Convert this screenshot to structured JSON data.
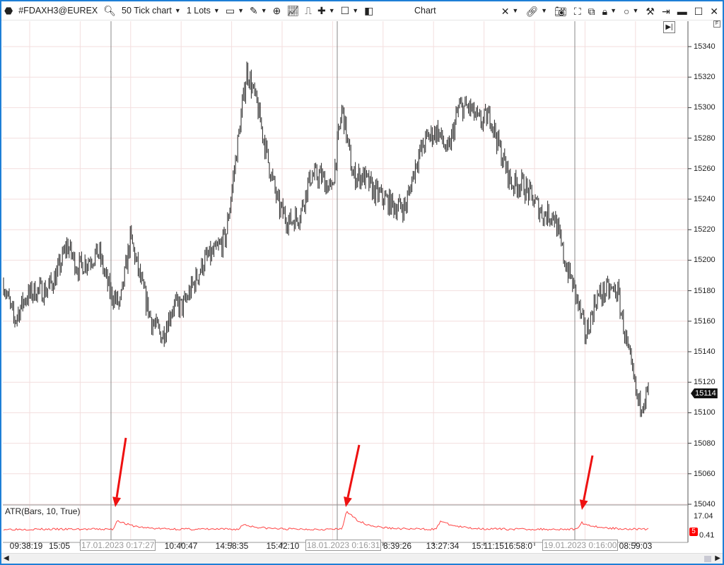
{
  "toolbar": {
    "symbol": "#FDAXH3@EUREX",
    "chart_type": "50 Tick chart",
    "lots": "1 Lots",
    "title": "Chart"
  },
  "axis": {
    "price_labels": [
      "15340",
      "15320",
      "15300",
      "15280",
      "15260",
      "15240",
      "15220",
      "15200",
      "15180",
      "15160",
      "15140",
      "15120",
      "15100",
      "15080",
      "15060",
      "15040"
    ],
    "last_price": "15114",
    "atr_max": "17.04",
    "atr_min": "0.41",
    "atr_last": "5"
  },
  "indicator": {
    "label": "ATR(Bars, 10, True)",
    "color": "#ff4444"
  },
  "time_axis": {
    "labels": [
      "09:38:19",
      "15:05",
      "10:40:47",
      "14:58:35",
      "15:42:10",
      "8:39:26",
      "13:27:34",
      "15:11:15",
      "16:58:0",
      "08:59:03"
    ],
    "sessions": [
      "17.01.2023 0:17:27",
      "18.01.2023 0:16:31",
      "19.01.2023 0:16:00"
    ]
  },
  "chart_data": {
    "type": "line",
    "subtype": "tick bars (OHLC)",
    "ylim": [
      15040,
      15340
    ],
    "price_path": [
      15185,
      15160,
      15175,
      15180,
      15180,
      15190,
      15210,
      15195,
      15200,
      15205,
      15180,
      15170,
      15215,
      15185,
      15160,
      15150,
      15170,
      15170,
      15185,
      15200,
      15205,
      15215,
      15270,
      15325,
      15300,
      15265,
      15235,
      15225,
      15230,
      15255,
      15255,
      15245,
      15300,
      15255,
      15255,
      15245,
      15240,
      15235,
      15235,
      15265,
      15280,
      15285,
      15270,
      15300,
      15300,
      15290,
      15295,
      15270,
      15250,
      15250,
      15240,
      15230,
      15230,
      15200,
      15180,
      15150,
      15175,
      15180,
      15180,
      15140,
      15105,
      15114
    ],
    "atr": {
      "ylim": [
        0.41,
        17.04
      ],
      "baseline": 4,
      "spikes": [
        9.5,
        7,
        15,
        9,
        8
      ]
    },
    "annotation_color": "#ee1111"
  }
}
